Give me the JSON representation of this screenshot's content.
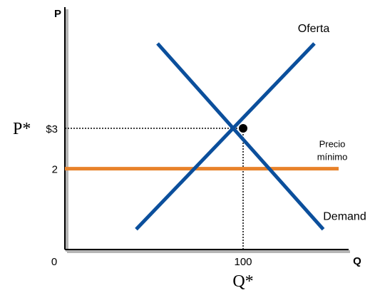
{
  "chart_data": {
    "type": "line",
    "xlabel": "Q",
    "ylabel": "P",
    "xlim": [
      0,
      160
    ],
    "ylim": [
      0,
      6
    ],
    "series": [
      {
        "name": "Oferta",
        "color": "#0b4f9c",
        "x": [
          40,
          140
        ],
        "y": [
          0.5,
          5.1
        ]
      },
      {
        "name": "Demand",
        "color": "#0b4f9c",
        "x": [
          52,
          145
        ],
        "y": [
          5.1,
          0.5
        ]
      }
    ],
    "price_floor": {
      "name": "Precio mínimo",
      "label_line1": "Precio",
      "label_line2": "mínimo",
      "y": 2,
      "color": "#e8822a"
    },
    "equilibrium": {
      "x": 100,
      "y": 3,
      "x_symbol": "Q*",
      "y_symbol": "P*"
    },
    "x_ticks": [
      {
        "value": 0,
        "label": "0"
      },
      {
        "value": 100,
        "label": "100"
      }
    ],
    "y_ticks": [
      {
        "value": 3,
        "label": "$3"
      },
      {
        "value": 2,
        "label": "2"
      }
    ]
  }
}
